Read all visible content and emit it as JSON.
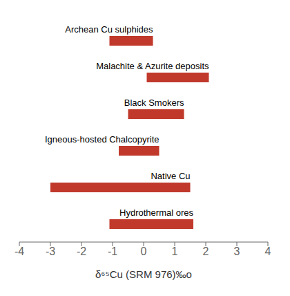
{
  "chart_data": {
    "type": "bar",
    "orientation": "horizontal",
    "categories": [
      "Archean Cu sulphides",
      "Malachite & Azurite deposits",
      "Black Smokers",
      "Igneous-hosted Chalcopyrite",
      "Native Cu",
      "Hydrothermal ores"
    ],
    "values": [
      [
        -1.1,
        0.3
      ],
      [
        0.1,
        2.1
      ],
      [
        -0.5,
        1.3
      ],
      [
        -0.8,
        0.5
      ],
      [
        -3.0,
        1.5
      ],
      [
        -1.1,
        1.6
      ]
    ],
    "color": "#C0392B",
    "x_label": "δ⁶⁵Cu (SRM 976)‰o",
    "xlim": [
      -4,
      4
    ],
    "xticks": [
      -4,
      -3,
      -2,
      -1,
      0,
      1,
      2,
      3,
      4
    ],
    "grid": false,
    "tick_labels": "x"
  }
}
